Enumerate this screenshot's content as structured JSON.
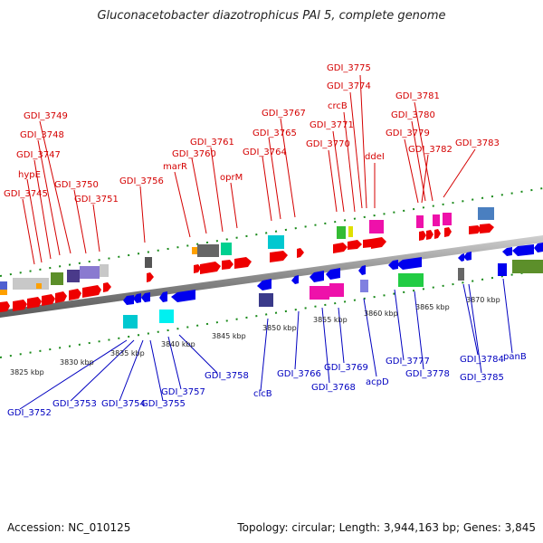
{
  "title": "Gluconacetobacter diazotrophicus PAl 5, complete genome",
  "footer": {
    "accession": "Accession: NC_010125",
    "topology": "Topology: circular; Length: 3,944,163 bp; Genes: 3,845"
  },
  "colors": {
    "forward_label": "#d40000",
    "reverse_label": "#0000c0",
    "backbone": "#8a8a8a",
    "tick": "#1a8a1a"
  },
  "kbp_ticks": [
    {
      "label": "3825 kbp"
    },
    {
      "label": "3830 kbp"
    },
    {
      "label": "3835 kbp"
    },
    {
      "label": "3840 kbp"
    },
    {
      "label": "3845 kbp"
    },
    {
      "label": "3850 kbp"
    },
    {
      "label": "3855 kbp"
    },
    {
      "label": "3860 kbp"
    },
    {
      "label": "3865 kbp"
    },
    {
      "label": "3870 kbp"
    }
  ],
  "forward_labels": [
    {
      "text": "GDI_3775"
    },
    {
      "text": "GDI_3774"
    },
    {
      "text": "crcB"
    },
    {
      "text": "GDI_3771"
    },
    {
      "text": "GDI_3770"
    },
    {
      "text": "ddeI"
    },
    {
      "text": "GDI_3781"
    },
    {
      "text": "GDI_3780"
    },
    {
      "text": "GDI_3779"
    },
    {
      "text": "GDI_3782"
    },
    {
      "text": "GDI_3783"
    },
    {
      "text": "GDI_3767"
    },
    {
      "text": "GDI_3765"
    },
    {
      "text": "GDI_3764"
    },
    {
      "text": "GDI_3761"
    },
    {
      "text": "GDI_3760"
    },
    {
      "text": "marR"
    },
    {
      "text": "oprM"
    },
    {
      "text": "GDI_3756"
    },
    {
      "text": "GDI_3749"
    },
    {
      "text": "GDI_3748"
    },
    {
      "text": "GDI_3747"
    },
    {
      "text": "hypE"
    },
    {
      "text": "GDI_3750"
    },
    {
      "text": "GDI_3745"
    },
    {
      "text": "GDI_3751"
    }
  ],
  "reverse_labels": [
    {
      "text": "GDI_3752"
    },
    {
      "text": "GDI_3753"
    },
    {
      "text": "GDI_3754"
    },
    {
      "text": "GDI_3755"
    },
    {
      "text": "GDI_3757"
    },
    {
      "text": "GDI_3758"
    },
    {
      "text": "clcB"
    },
    {
      "text": "GDI_3766"
    },
    {
      "text": "GDI_3768"
    },
    {
      "text": "GDI_3769"
    },
    {
      "text": "acpD"
    },
    {
      "text": "GDI_3777"
    },
    {
      "text": "GDI_3778"
    },
    {
      "text": "GDI_3784"
    },
    {
      "text": "GDI_3785"
    },
    {
      "text": "panB"
    }
  ]
}
